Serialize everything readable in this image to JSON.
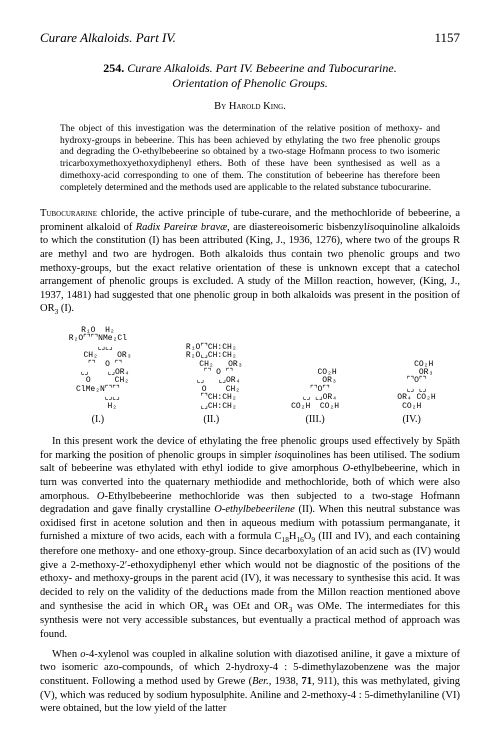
{
  "header": {
    "running_title": "Curare Alkaloids. Part IV.",
    "page_number": "1157"
  },
  "title": {
    "number": "254.",
    "line1": "Curare Alkaloids. Part IV. Bebeerine and Tubocurarine.",
    "line2": "Orientation of Phenolic Groups."
  },
  "byline": "By Harold King.",
  "abstract": "The object of this investigation was the determination of the relative position of methoxy- and hydroxy-groups in bebeerine. This has been achieved by ethylating the two free phenolic groups and degrading the O-ethylbebeerine so obtained by a two-stage Hofmann process to two isomeric tricarboxymethoxyethoxydiphenyl ethers. Both of these have been synthesised as well as a dimethoxy-acid corresponding to one of them. The constitution of bebeerine has therefore been completely determined and the methods used are applicable to the related substance tubocurarine.",
  "para1": "Tubocurarine chloride, the active principle of tube-curare, and the methochloride of bebeerine, a prominent alkaloid of Radix Pareiræ bravæ, are diastereoisomeric bisbenzylisoquinoline alkaloids to which the constitution (I) has been attributed (King, J., 1936, 1276), where two of the groups R are methyl and two are hydrogen. Both alkaloids thus contain two phenolic groups and two methoxy-groups, but the exact relative orientation of these is unknown except that a catechol arrangement of phenolic groups is excluded. A study of the Millon reaction, however, (King, J., 1937, 1481) had suggested that one phenolic group in both alkaloids was present in the position of OR₃ (I).",
  "structures": {
    "s1": {
      "label": "(I.)"
    },
    "s2": {
      "label": "(II.)"
    },
    "s3": {
      "label": "(III.)"
    },
    "s4": {
      "label": "(IV.)"
    }
  },
  "para2": "In this present work the device of ethylating the free phenolic groups used effectively by Späth for marking the position of phenolic groups in simpler isoquinolines has been utilised. The sodium salt of bebeerine was ethylated with ethyl iodide to give amorphous O-ethylbebeerine, which in turn was converted into the quaternary methiodide and methochloride, both of which were also amorphous. O-Ethylbebeerine methochloride was then subjected to a two-stage Hofmann degradation and gave finally crystalline O-ethylbebeerilene (II). When this neutral substance was oxidised first in acetone solution and then in aqueous medium with potassium permanganate, it furnished a mixture of two acids, each with a formula C₁₈H₁₆O₉ (III and IV), and each containing therefore one methoxy- and one ethoxy-group. Since decarboxylation of an acid such as (IV) would give a 2-methoxy-2′-ethoxydiphenyl ether which would not be diagnostic of the positions of the ethoxy- and methoxy-groups in the parent acid (IV), it was necessary to synthesise this acid. It was decided to rely on the validity of the deductions made from the Millon reaction mentioned above and synthesise the acid in which OR₄ was OEt and OR₃ was OMe. The intermediates for this synthesis were not very accessible substances, but eventually a practical method of approach was found.",
  "para3": "When o-4-xylenol was coupled in alkaline solution with diazotised aniline, it gave a mixture of two isomeric azo-compounds, of which 2-hydroxy-4 : 5-dimethylazobenzene was the major constituent. Following a method used by Grewe (Ber., 1938, 71, 911), this was methylated, giving (V), which was reduced by sodium hyposulphite. Aniline and 2-methoxy-4 : 5-dimethylaniline (VI) were obtained, but the low yield of the latter"
}
